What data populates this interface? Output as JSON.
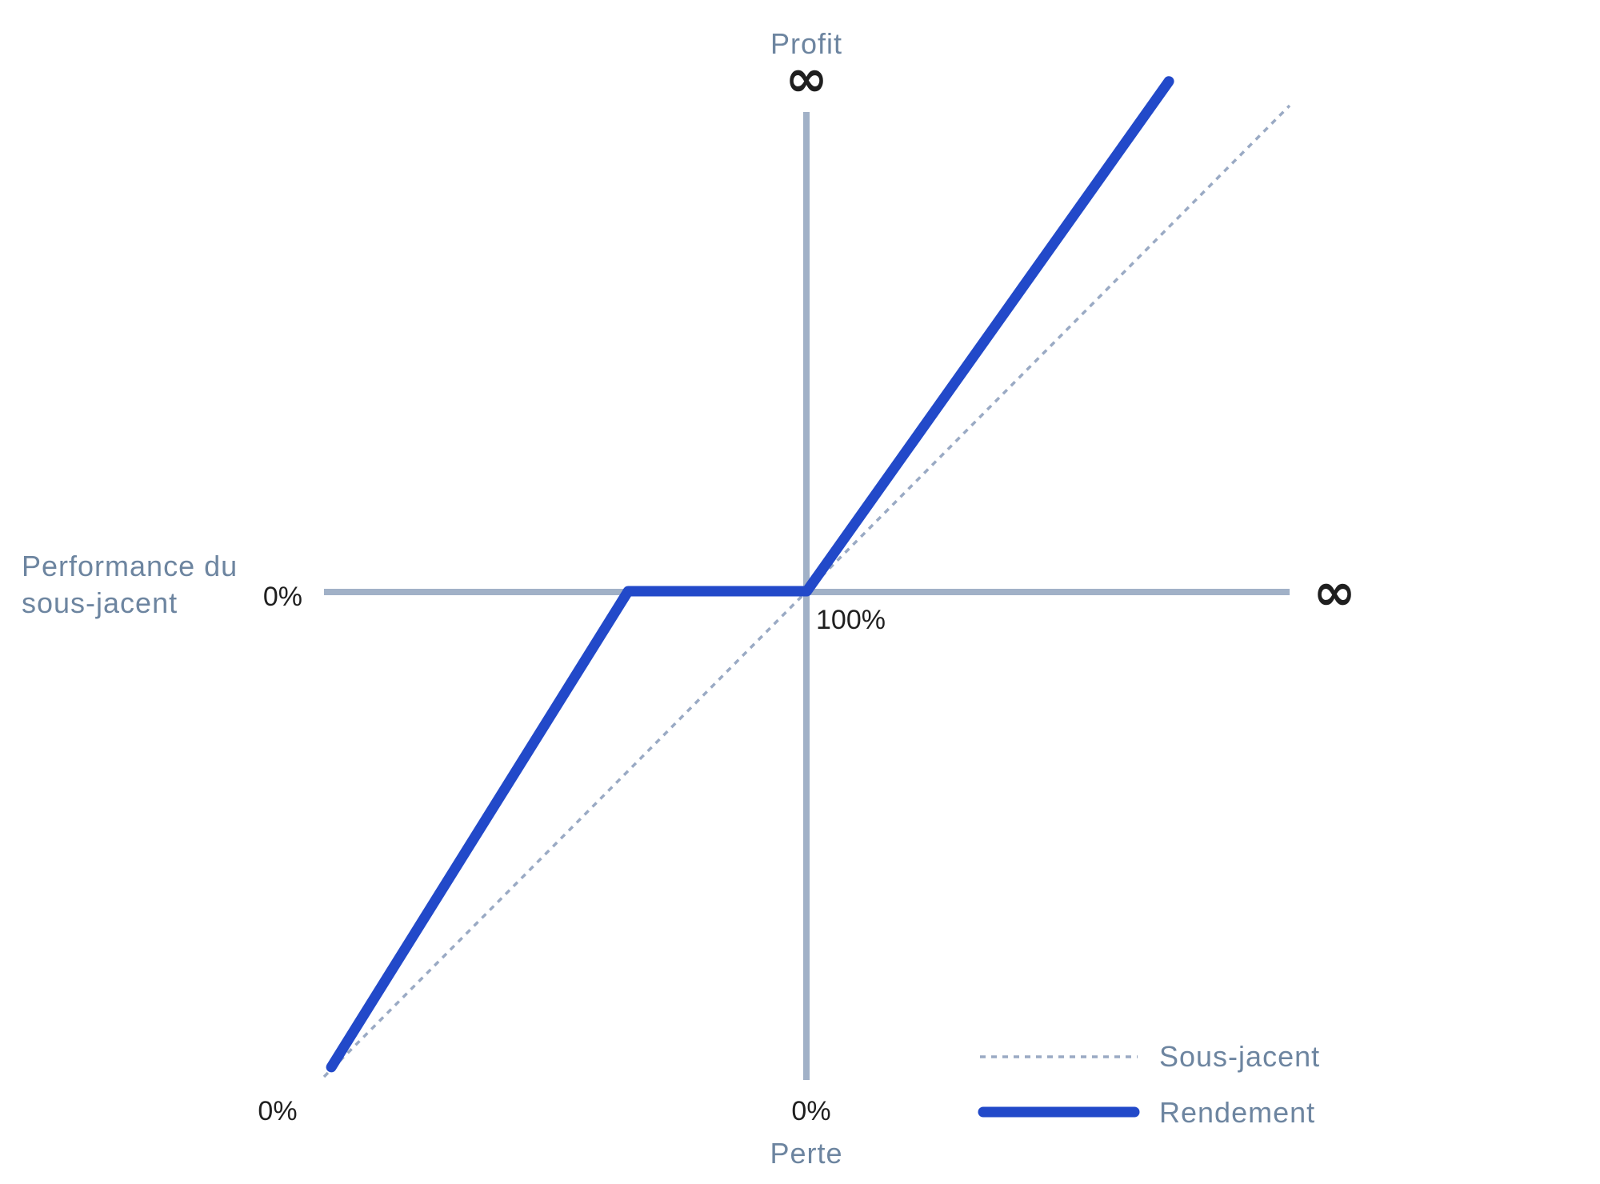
{
  "colors": {
    "axis": "#a1b1c7",
    "muted_text": "#6d85a0",
    "dark_text": "#1f1f1f",
    "payoff": "#2249c9",
    "underlying": "#9aaac4"
  },
  "chart_data": {
    "type": "line",
    "title": "",
    "axis_labels": {
      "y_top": "Profit",
      "y_bottom": "Perte",
      "x_left": [
        "Performance du",
        "sous-jacent"
      ]
    },
    "ticks": {
      "infinity_top": "∞",
      "infinity_right": "∞",
      "zero_y_axis": "0%",
      "hundred_x": "100%",
      "zero_bottom_left": "0%",
      "zero_bottom_center": "0%"
    },
    "xlim": [
      0,
      200
    ],
    "ylim": [
      -100,
      100
    ],
    "series": [
      {
        "name": "Sous-jacent",
        "style": "dotted",
        "x": [
          0,
          200
        ],
        "y": [
          -100,
          100
        ]
      },
      {
        "name": "Rendement",
        "style": "solid",
        "x": [
          1.5,
          63,
          100,
          175
        ],
        "y": [
          -98,
          0,
          0,
          105
        ]
      }
    ],
    "legend": {
      "position": "bottom-right",
      "items": [
        "Sous-jacent",
        "Rendement"
      ]
    }
  }
}
